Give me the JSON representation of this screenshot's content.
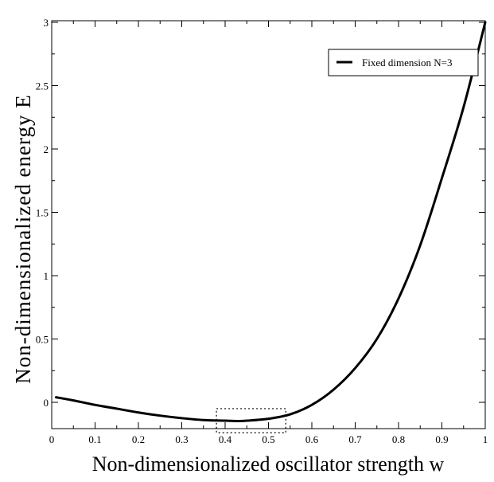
{
  "chart_data": {
    "type": "line",
    "title": "",
    "xlabel": "Non-dimensionalized oscillator strength w",
    "ylabel": "Non-dimensionalized energy E",
    "xlim": [
      0,
      1
    ],
    "ylim": [
      -0.15,
      3
    ],
    "x_ticks": [
      0,
      0.1,
      0.2,
      0.3,
      0.4,
      0.5,
      0.6,
      0.7,
      0.8,
      0.9,
      1
    ],
    "x_tick_labels": [
      "0",
      "0.1",
      "0.2",
      "0.3",
      "0.4",
      "0.5",
      "0.6",
      "0.7",
      "0.8",
      "0.9",
      "1"
    ],
    "y_ticks": [
      0,
      0.5,
      1,
      1.5,
      2,
      2.5,
      3
    ],
    "y_tick_labels": [
      "0",
      "0.5",
      "1",
      "1.5",
      "2",
      "2.5",
      "3"
    ],
    "grid": false,
    "legend": {
      "position": "top-right",
      "entries": [
        "Fixed dimension N=3"
      ]
    },
    "series": [
      {
        "name": "Fixed dimension N=3",
        "color": "#000000",
        "x": [
          0.01,
          0.05,
          0.1,
          0.15,
          0.2,
          0.25,
          0.3,
          0.35,
          0.4,
          0.43,
          0.45,
          0.5,
          0.55,
          0.6,
          0.65,
          0.7,
          0.75,
          0.8,
          0.85,
          0.9,
          0.95,
          1.0
        ],
        "y": [
          0.04,
          0.015,
          -0.02,
          -0.05,
          -0.08,
          -0.105,
          -0.125,
          -0.14,
          -0.145,
          -0.148,
          -0.145,
          -0.13,
          -0.095,
          -0.02,
          0.1,
          0.27,
          0.5,
          0.82,
          1.24,
          1.77,
          2.33,
          3.0
        ]
      }
    ],
    "annotations": [
      {
        "type": "dotted-rectangle",
        "x_range": [
          0.38,
          0.54
        ],
        "y_range": [
          -0.24,
          -0.05
        ]
      }
    ]
  }
}
